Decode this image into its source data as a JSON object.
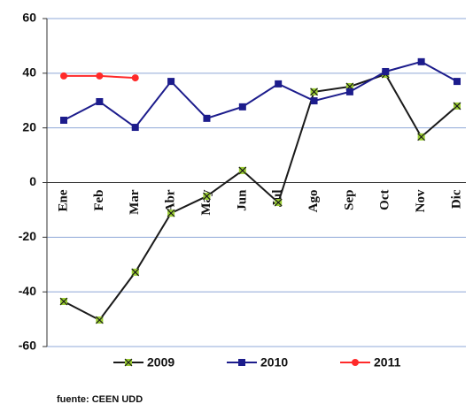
{
  "chart_data": {
    "type": "line",
    "categories": [
      "Ene",
      "Feb",
      "Mar",
      "Abr",
      "May",
      "Jun",
      "Jul",
      "Ago",
      "Sep",
      "Oct",
      "Nov",
      "Dic"
    ],
    "series": [
      {
        "name": "2009",
        "color": "#1a1a1a",
        "marker": "cross",
        "marker_color": "#9acd32",
        "values": [
          -43.5,
          -50.3,
          -32.8,
          -11.2,
          -5,
          4.4,
          -7.3,
          33.2,
          35.1,
          39.6,
          16.7,
          28
        ]
      },
      {
        "name": "2010",
        "color": "#1c1c8c",
        "marker": "square",
        "marker_color": "#1c1c8c",
        "values": [
          22.8,
          29.6,
          20.2,
          37,
          23.5,
          27.7,
          36.1,
          29.9,
          33.2,
          40.6,
          44.2,
          37
        ]
      },
      {
        "name": "2011",
        "color": "#ff2a2a",
        "marker": "circle",
        "marker_color": "#ff2a2a",
        "values": [
          39,
          39,
          38.3,
          null,
          null,
          null,
          null,
          null,
          null,
          null,
          null,
          null
        ]
      }
    ],
    "ylim": [
      -60,
      60
    ],
    "yticks": [
      -60,
      -40,
      -20,
      0,
      20,
      40,
      60
    ],
    "grid": true,
    "legend": "bottom",
    "source": "fuente: CEEN UDD"
  }
}
